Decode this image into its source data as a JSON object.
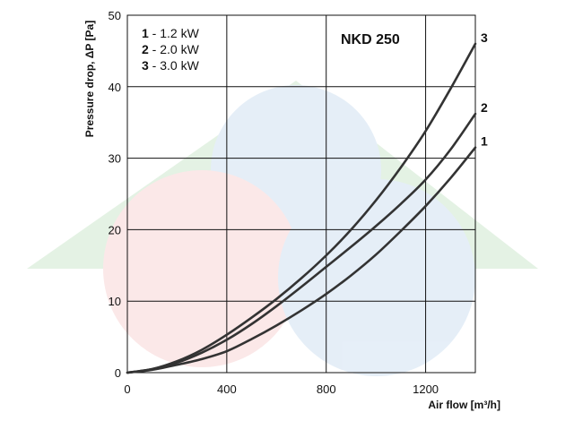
{
  "chart_data": {
    "type": "line",
    "title": "NKD 250",
    "xlabel": "Air flow [m³/h]",
    "ylabel": "Pressure drop, ΔP [Pa]",
    "xlim": [
      0,
      1400
    ],
    "ylim": [
      0,
      50
    ],
    "x_ticks": [
      0,
      400,
      800,
      1200
    ],
    "y_ticks": [
      0,
      10,
      20,
      30,
      40,
      50
    ],
    "grid": true,
    "legend_placement": "top-left",
    "legend": [
      {
        "num": "1",
        "text": " - 1.2 kW"
      },
      {
        "num": "2",
        "text": " - 2.0 kW"
      },
      {
        "num": "3",
        "text": " - 3.0 kW"
      }
    ],
    "series": [
      {
        "name": "1",
        "x": [
          0,
          100,
          200,
          300,
          400,
          500,
          600,
          700,
          800,
          900,
          1000,
          1100,
          1200,
          1300,
          1400
        ],
        "y": [
          0,
          0.4,
          1.1,
          1.9,
          3.0,
          4.7,
          6.6,
          8.7,
          11.0,
          13.6,
          16.5,
          19.8,
          23.3,
          27.2,
          31.5
        ]
      },
      {
        "name": "2",
        "x": [
          0,
          100,
          200,
          300,
          400,
          500,
          600,
          700,
          800,
          900,
          1000,
          1100,
          1200,
          1300,
          1400
        ],
        "y": [
          0,
          0.5,
          1.4,
          2.8,
          4.6,
          6.8,
          9.3,
          12.0,
          14.8,
          17.6,
          20.5,
          23.6,
          27.0,
          31.2,
          36.2
        ]
      },
      {
        "name": "3",
        "x": [
          0,
          100,
          200,
          300,
          400,
          500,
          600,
          700,
          800,
          900,
          1000,
          1100,
          1200,
          1300,
          1400
        ],
        "y": [
          0,
          0.5,
          1.6,
          3.2,
          5.3,
          7.7,
          10.3,
          13.2,
          16.4,
          20.0,
          24.1,
          28.7,
          33.8,
          39.7,
          46.0
        ]
      }
    ],
    "colors": {
      "line": "#333333",
      "grid": "#111111",
      "watermark_green": "#dcefdc",
      "watermark_blue": "#dde9f6",
      "watermark_red": "#fbe3e3"
    }
  }
}
